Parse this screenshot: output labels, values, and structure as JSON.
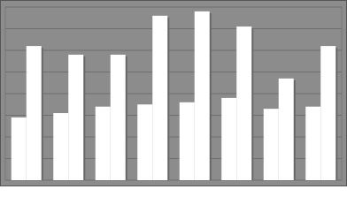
{
  "chart_data": {
    "type": "bar",
    "categories": [
      null,
      null,
      null,
      null,
      null,
      null,
      null,
      null
    ],
    "series": [
      {
        "color": "#ffffff",
        "values": [
          2.9,
          3.1,
          3.4,
          3.5,
          3.6,
          3.8,
          3.3,
          3.4
        ]
      },
      {
        "color": "#ffffff",
        "values": [
          6.2,
          5.8,
          5.8,
          7.6,
          7.8,
          7.1,
          4.7,
          6.2
        ]
      }
    ],
    "ylim": [
      0,
      8
    ],
    "yticks": [
      0,
      1,
      2,
      3,
      4,
      5,
      6,
      7,
      8
    ],
    "grid": true,
    "background": "#8c8c8c",
    "grid_color": "#6e6e6e"
  }
}
